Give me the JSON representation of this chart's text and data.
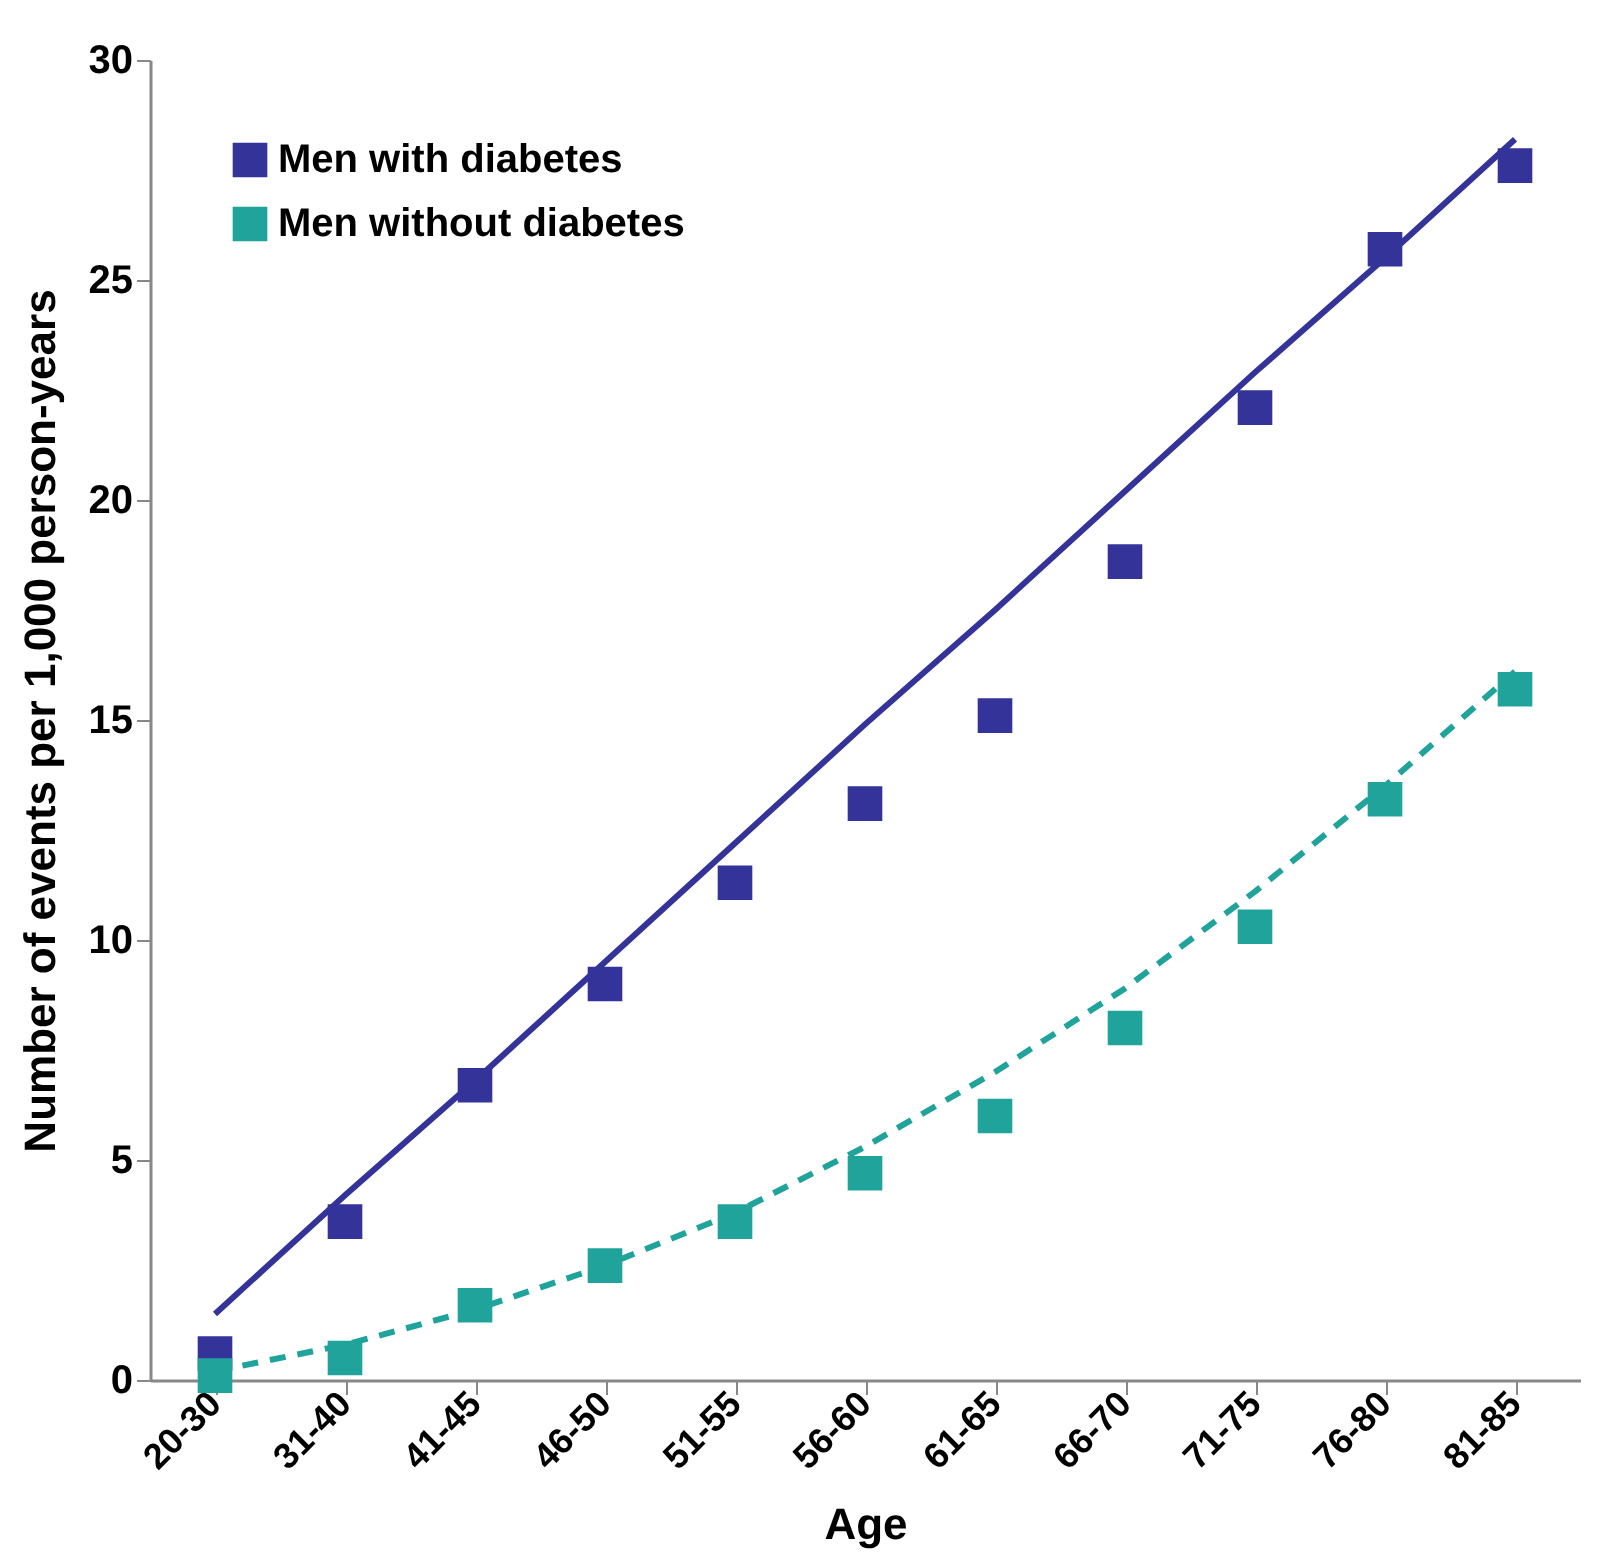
{
  "chart_data": {
    "type": "scatter",
    "xlabel": "Age",
    "ylabel": "Number of events per 1,000 person-years",
    "categories": [
      "20-30",
      "31-40",
      "41-45",
      "46-50",
      "51-55",
      "56-60",
      "61-65",
      "66-70",
      "71-75",
      "76-80",
      "81-85"
    ],
    "series": [
      {
        "name": "Men with diabetes",
        "color": "#333399",
        "marker": "square",
        "values": [
          0.6,
          3.6,
          6.7,
          9.0,
          11.3,
          13.1,
          15.1,
          18.6,
          22.1,
          25.7,
          27.6
        ]
      },
      {
        "name": "Men without diabetes",
        "color": "#1fa39b",
        "marker": "square",
        "values": [
          0.1,
          0.5,
          1.7,
          2.6,
          3.6,
          4.7,
          6.0,
          8.0,
          10.3,
          13.2,
          15.7
        ]
      },
      {
        "color": "#333399",
        "type": "line",
        "line_style": "solid",
        "values": [
          1.5,
          4.2,
          6.8,
          9.5,
          12.2,
          14.9,
          17.5,
          20.2,
          22.9,
          25.5,
          28.2
        ]
      },
      {
        "color": "#1fa39b",
        "type": "line",
        "line_style": "dashed",
        "values": [
          0.2,
          0.8,
          1.6,
          2.6,
          3.8,
          5.3,
          7.0,
          8.9,
          11.1,
          13.5,
          16.1
        ]
      }
    ],
    "ylim": [
      0,
      30
    ],
    "yticks": [
      0,
      5,
      10,
      15,
      20,
      25,
      30
    ],
    "grid": false,
    "legend": "top left"
  }
}
